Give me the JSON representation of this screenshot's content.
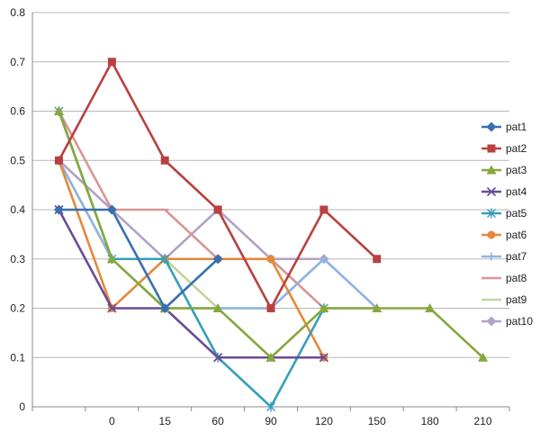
{
  "chart_data": {
    "type": "line",
    "categories": [
      "",
      "0",
      "15",
      "60",
      "90",
      "120",
      "150",
      "180",
      "210"
    ],
    "ylim": [
      0,
      0.8
    ],
    "yticks": [
      "0",
      "0.1",
      "0.2",
      "0.3",
      "0.4",
      "0.5",
      "0.6",
      "0.7",
      "0.8"
    ],
    "grid": true,
    "legend_position": "right",
    "series": [
      {
        "name": "pat1",
        "color": "#3a6fb0",
        "marker": "diamond",
        "values": [
          0.4,
          0.4,
          0.2,
          0.3,
          null,
          null,
          null,
          null,
          null
        ]
      },
      {
        "name": "pat2",
        "color": "#b8413f",
        "marker": "square",
        "values": [
          0.5,
          0.7,
          0.5,
          0.4,
          0.2,
          0.4,
          0.3,
          null,
          null
        ]
      },
      {
        "name": "pat3",
        "color": "#86a83c",
        "marker": "triangle",
        "values": [
          0.6,
          0.3,
          0.2,
          0.2,
          0.1,
          0.2,
          0.2,
          0.2,
          0.1
        ]
      },
      {
        "name": "pat4",
        "color": "#6a4c93",
        "marker": "x",
        "values": [
          0.4,
          0.2,
          0.2,
          0.1,
          0.1,
          0.1,
          null,
          null,
          null
        ]
      },
      {
        "name": "pat5",
        "color": "#35a0b8",
        "marker": "star",
        "values": [
          0.6,
          0.3,
          0.3,
          0.1,
          0.0,
          0.2,
          null,
          null,
          null
        ]
      },
      {
        "name": "pat6",
        "color": "#e6883a",
        "marker": "circle",
        "values": [
          0.5,
          0.2,
          0.3,
          0.3,
          0.3,
          0.1,
          null,
          null,
          null
        ]
      },
      {
        "name": "pat7",
        "color": "#8db3e2",
        "marker": "plus",
        "values": [
          0.5,
          0.3,
          0.2,
          0.2,
          0.2,
          0.3,
          0.2,
          null,
          null
        ]
      },
      {
        "name": "pat8",
        "color": "#d99694",
        "marker": "dash",
        "values": [
          0.6,
          0.4,
          0.4,
          0.3,
          0.3,
          0.2,
          0.2,
          null,
          null
        ]
      },
      {
        "name": "pat9",
        "color": "#c3d69b",
        "marker": "dash",
        "values": [
          0.5,
          0.3,
          0.3,
          0.2,
          0.2,
          null,
          null,
          null,
          null
        ]
      },
      {
        "name": "pat10",
        "color": "#b3a2c7",
        "marker": "diamond",
        "values": [
          0.5,
          0.4,
          0.3,
          0.4,
          0.3,
          0.3,
          null,
          null,
          null
        ]
      }
    ]
  }
}
